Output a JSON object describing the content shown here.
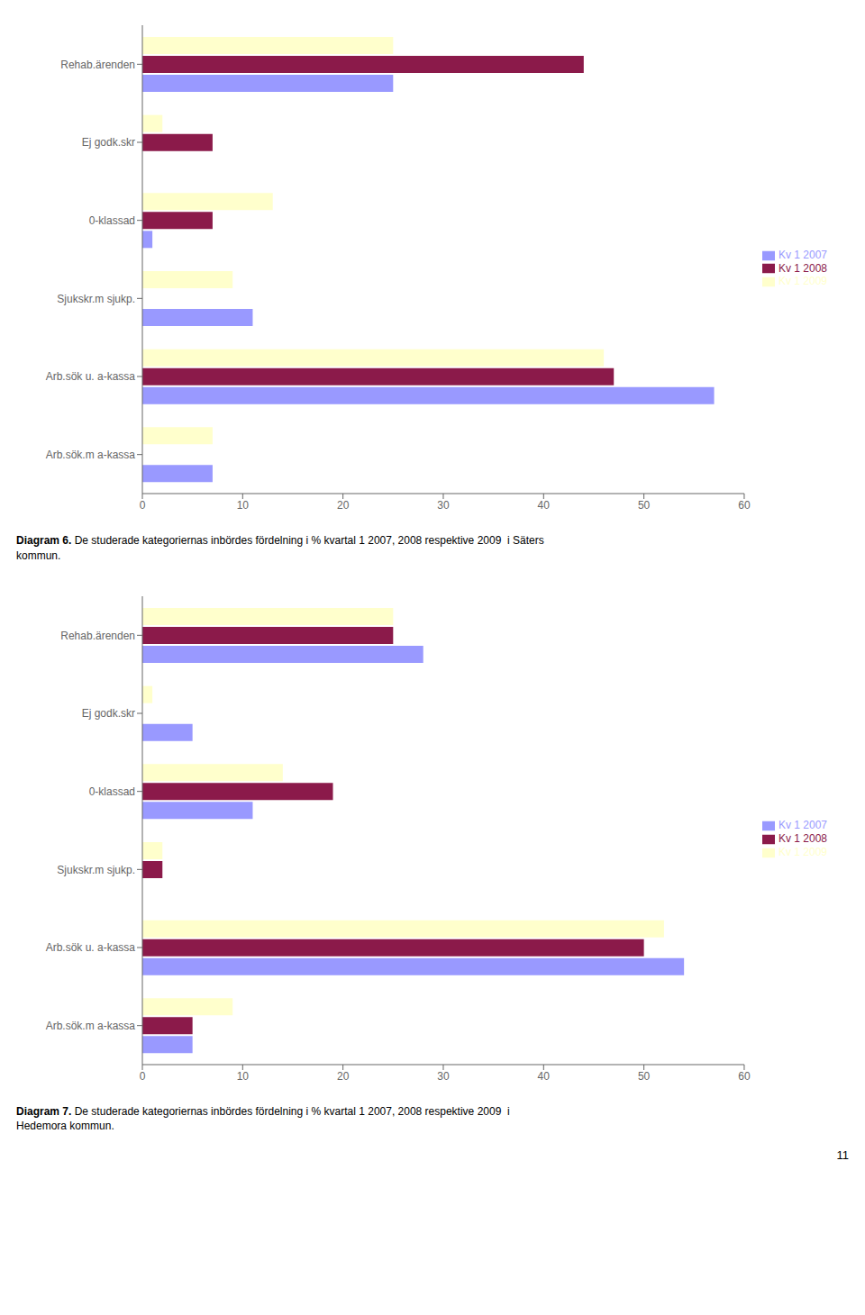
{
  "chart_data": [
    {
      "type": "bar",
      "orientation": "horizontal",
      "title": "Diagram 6.",
      "subtitle": " De studerade kategoriernas inbördes fördelning i % kvartal 1 2007, 2008 respektive 2009  i Säters\nkommun.",
      "categories": [
        "Rehab.ärenden",
        "Ej godk.skr",
        "0-klassad",
        "Sjukskr.m sjukp.",
        "Arb.sök u. a-kassa",
        "Arb.sök.m a-kassa"
      ],
      "series": [
        {
          "name": "Kv 1 2009",
          "color": "#FFFFCC",
          "values": [
            25,
            2,
            13,
            9,
            46,
            7
          ]
        },
        {
          "name": "Kv 1 2008",
          "color": "#8B1A4A",
          "values": [
            44,
            7,
            7,
            0,
            47,
            0
          ]
        },
        {
          "name": "Kv 1 2007",
          "color": "#9999FF",
          "values": [
            25,
            0,
            1,
            11,
            57,
            7
          ]
        }
      ],
      "xlim": [
        0,
        60
      ],
      "xticks": [
        0,
        10,
        20,
        30,
        40,
        50,
        60
      ],
      "grid": false,
      "legend": "right"
    },
    {
      "type": "bar",
      "orientation": "horizontal",
      "title": "Diagram 7.",
      "subtitle": " De studerade kategoriernas inbördes fördelning i % kvartal 1 2007, 2008 respektive 2009  i\nHedemora kommun.",
      "categories": [
        "Rehab.ärenden",
        "Ej godk.skr",
        "0-klassad",
        "Sjukskr.m sjukp.",
        "Arb.sök u. a-kassa",
        "Arb.sök.m a-kassa"
      ],
      "series": [
        {
          "name": "Kv 1 2009",
          "color": "#FFFFCC",
          "values": [
            25,
            1,
            14,
            2,
            52,
            9
          ]
        },
        {
          "name": "Kv 1 2008",
          "color": "#8B1A4A",
          "values": [
            25,
            0,
            19,
            2,
            50,
            5
          ]
        },
        {
          "name": "Kv 1 2007",
          "color": "#9999FF",
          "values": [
            28,
            5,
            11,
            0,
            54,
            5
          ]
        }
      ],
      "xlim": [
        0,
        60
      ],
      "xticks": [
        0,
        10,
        20,
        30,
        40,
        50,
        60
      ],
      "grid": false,
      "legend": "right",
      "annotations": [
        "11"
      ]
    }
  ]
}
